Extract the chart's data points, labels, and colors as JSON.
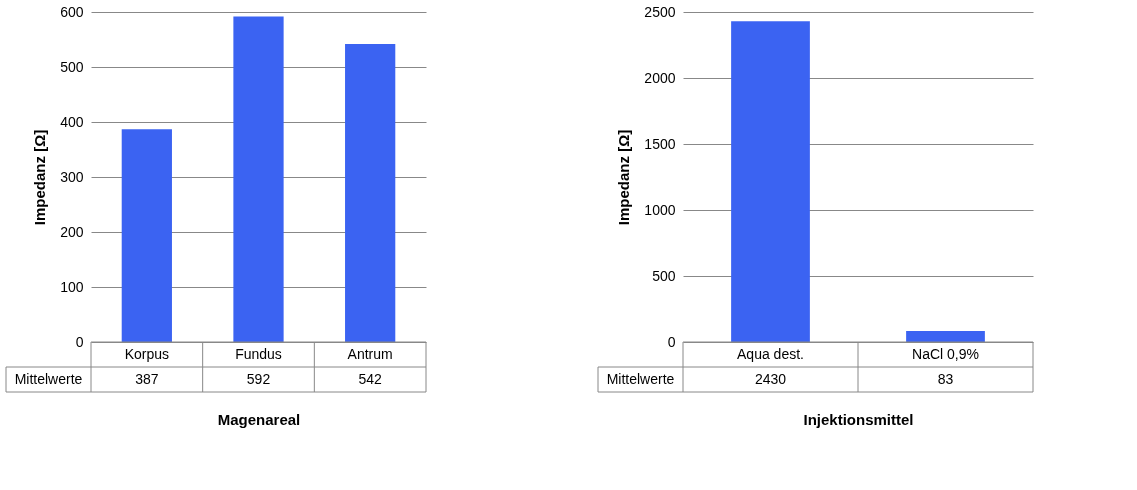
{
  "chart_data": [
    {
      "type": "bar",
      "xlabel": "Magenareal",
      "ylabel": "Impedanz [Ω]",
      "categories": [
        "Korpus",
        "Fundus",
        "Antrum"
      ],
      "values": [
        387,
        592,
        542
      ],
      "color": "#3b63f2",
      "ylim": [
        0,
        600
      ],
      "yticks": [
        0,
        100,
        200,
        300,
        400,
        500,
        600
      ],
      "grid": "y",
      "data_labels": true,
      "annotations": [
        "Mittelwerte"
      ]
    },
    {
      "type": "bar",
      "xlabel": "Injektionsmittel",
      "ylabel": "Impedanz [Ω]",
      "categories": [
        "Aqua dest.",
        "NaCl 0,9%"
      ],
      "values": [
        2430,
        83
      ],
      "color": "#3b63f2",
      "ylim": [
        0,
        2500
      ],
      "yticks": [
        0,
        500,
        1000,
        1500,
        2000,
        2500
      ],
      "grid": "y",
      "data_labels": true,
      "annotations": [
        "Mittelwerte"
      ]
    }
  ]
}
